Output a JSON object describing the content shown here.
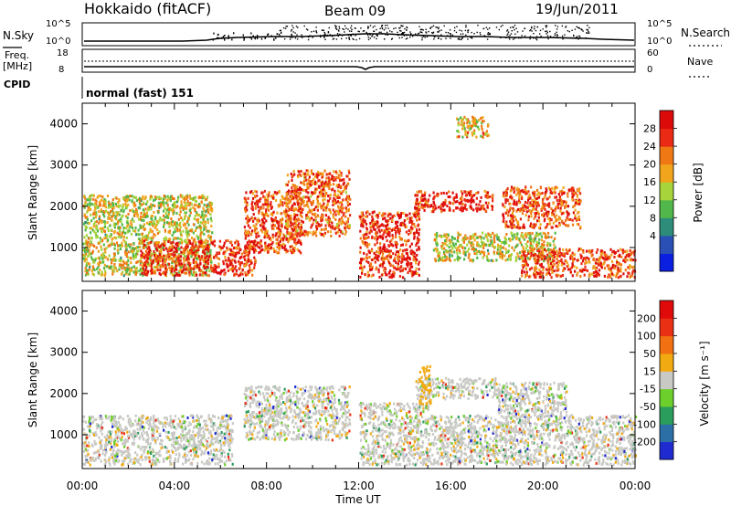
{
  "header": {
    "station": "Hokkaido (fitACF)",
    "beam": "Beam 09",
    "date": "19/Jun/2011"
  },
  "params_panel": {
    "nsky_label": "N.Sky",
    "nsearch_label": "N.Search",
    "noise_ticks": [
      "10^5",
      "10^0"
    ],
    "freq_label": "Freq.",
    "freq_unit": "[MHz]",
    "freq_ticks": [
      "18",
      "8"
    ],
    "nave_label": "Nave",
    "nave_ticks": [
      "60",
      "0"
    ],
    "cpid_label": "CPID",
    "cpid_value": "normal (fast) 151"
  },
  "x_axis": {
    "label": "Time UT",
    "ticks": [
      "00:00",
      "04:00",
      "08:00",
      "12:00",
      "16:00",
      "20:00",
      "00:00"
    ]
  },
  "chart_data": [
    {
      "type": "heatmap",
      "name": "power",
      "ylabel": "Slant Range [km]",
      "yticks": [
        1000,
        2000,
        3000,
        4000
      ],
      "ylim": [
        180,
        4500
      ],
      "xlim_hours": [
        0,
        24
      ],
      "colorbar": {
        "label": "Power [dB]",
        "ticks": [
          "28",
          "24",
          "20",
          "16",
          "12",
          "8",
          "4"
        ],
        "colors": [
          "#0b1fe0",
          "#2a4fb5",
          "#2e8c7a",
          "#52b74a",
          "#a6d43a",
          "#f0a51c",
          "#f07814",
          "#ea2a14",
          "#dd0a0a"
        ]
      },
      "echo_regions": [
        {
          "t": [
            0.0,
            5.6
          ],
          "r": [
            350,
            2300
          ],
          "level": 0.55
        },
        {
          "t": [
            2.5,
            7.5
          ],
          "r": [
            350,
            1200
          ],
          "level": 0.9
        },
        {
          "t": [
            7.0,
            9.5
          ],
          "r": [
            900,
            2400
          ],
          "level": 0.85
        },
        {
          "t": [
            8.8,
            11.6
          ],
          "r": [
            1300,
            2900
          ],
          "level": 0.8
        },
        {
          "t": [
            12.0,
            14.6
          ],
          "r": [
            300,
            1900
          ],
          "level": 0.9
        },
        {
          "t": [
            14.4,
            17.8
          ],
          "r": [
            1900,
            2400
          ],
          "level": 0.92
        },
        {
          "t": [
            15.2,
            20.5
          ],
          "r": [
            700,
            1400
          ],
          "level": 0.55
        },
        {
          "t": [
            18.2,
            21.6
          ],
          "r": [
            1500,
            2500
          ],
          "level": 0.82
        },
        {
          "t": [
            19.0,
            24.0
          ],
          "r": [
            300,
            1000
          ],
          "level": 0.85
        },
        {
          "t": [
            16.2,
            17.6
          ],
          "r": [
            3700,
            4200
          ],
          "level": 0.6
        }
      ]
    },
    {
      "type": "heatmap",
      "name": "velocity",
      "ylabel": "Slant Range [km]",
      "yticks": [
        1000,
        2000,
        3000,
        4000
      ],
      "ylim": [
        180,
        4500
      ],
      "xlim_hours": [
        0,
        24
      ],
      "colorbar": {
        "label": "Velocity [m s⁻¹]",
        "ticks": [
          "200",
          "100",
          "50",
          "15",
          "-15",
          "-50",
          "-100",
          "-200"
        ],
        "colors": [
          "#1f2ad0",
          "#2c6fa6",
          "#2a9c5c",
          "#6ccf2c",
          "#c8c8c4",
          "#f2aa12",
          "#f07012",
          "#ea3014",
          "#e00a0a"
        ]
      },
      "echo_regions": [
        {
          "t": [
            0.0,
            6.5
          ],
          "r": [
            300,
            1500
          ],
          "level": 0.45
        },
        {
          "t": [
            7.0,
            11.6
          ],
          "r": [
            900,
            2200
          ],
          "level": 0.45
        },
        {
          "t": [
            12.0,
            15.0
          ],
          "r": [
            300,
            1800
          ],
          "level": 0.45
        },
        {
          "t": [
            14.4,
            18.0
          ],
          "r": [
            1900,
            2400
          ],
          "level": 0.45
        },
        {
          "t": [
            15.0,
            24.0
          ],
          "r": [
            300,
            1500
          ],
          "level": 0.45
        },
        {
          "t": [
            18.0,
            21.0
          ],
          "r": [
            1500,
            2300
          ],
          "level": 0.45
        },
        {
          "t": [
            14.6,
            15.1
          ],
          "r": [
            1700,
            2700
          ],
          "level": 0.65
        }
      ]
    }
  ]
}
